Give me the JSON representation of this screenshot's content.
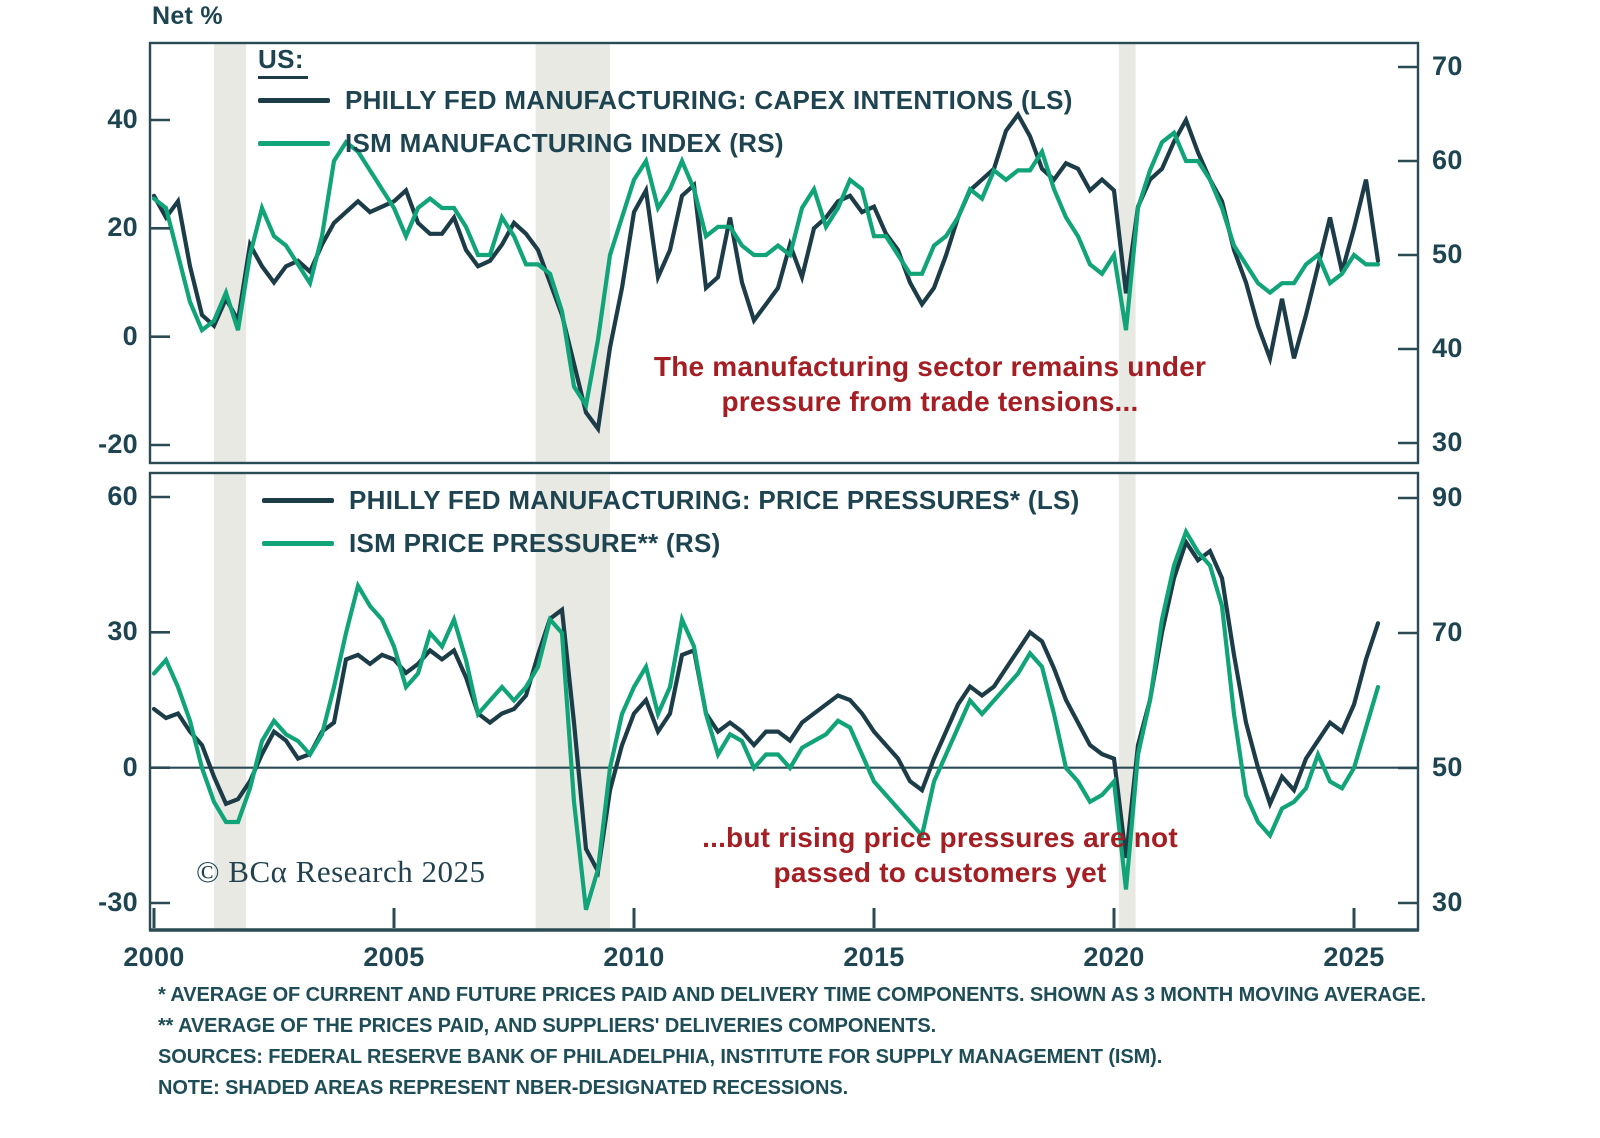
{
  "header": {
    "axis_title": "Net %"
  },
  "watermark": "© BCα Research 2025",
  "colors": {
    "dark_line": "#1c3c48",
    "green_line": "#10a478",
    "annotation_red": "#a41e23",
    "recession_band": "#e9e9e4",
    "axis": "#2a4a54",
    "text": "#1d4450",
    "footnote_text": "#1e4d57"
  },
  "annotations": {
    "top": {
      "line1": "The manufacturing sector remains under",
      "line2": "pressure from trade tensions..."
    },
    "bottom": {
      "line1": "...but rising price pressures are not",
      "line2": "passed to customers yet"
    }
  },
  "footnotes": [
    "* AVERAGE OF CURRENT AND FUTURE PRICES PAID AND DELIVERY TIME COMPONENTS. SHOWN AS 3 MONTH MOVING AVERAGE.",
    "** AVERAGE OF THE PRICES PAID, AND SUPPLIERS' DELIVERIES COMPONENTS.",
    "SOURCES: FEDERAL RESERVE BANK OF PHILADELPHIA, INSTITUTE FOR SUPPLY MANAGEMENT (ISM).",
    "NOTE: SHADED AREAS REPRESENT NBER-DESIGNATED RECESSIONS."
  ],
  "chart_data": {
    "type": "line",
    "x_axis": {
      "start": 2000,
      "step_years": 0.25,
      "tick_years": [
        2000,
        2005,
        2010,
        2015,
        2020,
        2025
      ],
      "tick_labels": [
        "2000",
        "2005",
        "2010",
        "2015",
        "2020",
        "2025"
      ],
      "range": [
        2000,
        2026.4
      ]
    },
    "recession_bands_years": [
      [
        2001.25,
        2001.92
      ],
      [
        2007.95,
        2009.5
      ],
      [
        2020.1,
        2020.45
      ]
    ],
    "panels": [
      {
        "region_label": "US:",
        "zero_line": false,
        "left_axis": {
          "ticks": [
            {
              "label": "40",
              "value": 40
            },
            {
              "label": "20",
              "value": 20
            },
            {
              "label": "0",
              "value": 0
            },
            {
              "label": "-20",
              "value": -20
            }
          ],
          "range": [
            -23,
            54
          ]
        },
        "right_axis": {
          "ticks": [
            {
              "label": "70",
              "value": 70
            },
            {
              "label": "60",
              "value": 60
            },
            {
              "label": "50",
              "value": 50
            },
            {
              "label": "40",
              "value": 40
            },
            {
              "label": "30",
              "value": 30
            }
          ],
          "range": [
            27.5,
            72.5
          ]
        },
        "series": [
          {
            "name": "PHILLY FED MANUFACTURING: CAPEX INTENTIONS (LS)",
            "axis": "left",
            "color_key": "dark_line",
            "values": [
              26,
              22,
              25,
              13,
              4,
              2,
              7,
              3,
              17,
              13,
              10,
              13,
              14,
              12,
              17,
              21,
              23,
              25,
              23,
              24,
              25,
              27,
              21,
              19,
              19,
              22,
              16,
              13,
              14,
              17,
              21,
              19,
              16,
              10,
              4,
              -5,
              -14,
              -17,
              -2,
              9,
              23,
              27,
              11,
              16,
              26,
              28,
              9,
              11,
              22,
              10,
              3,
              6,
              9,
              17,
              11,
              20,
              22,
              25,
              26,
              23,
              24,
              19,
              16,
              10,
              6,
              9,
              15,
              22,
              27,
              29,
              31,
              38,
              41,
              37,
              31,
              29,
              32,
              31,
              27,
              29,
              27,
              8,
              24,
              29,
              31,
              36,
              40,
              34,
              29,
              25,
              16,
              10,
              2,
              -4,
              7,
              -4,
              4,
              13,
              22,
              12,
              20,
              29,
              14
            ]
          },
          {
            "name": "ISM MANUFACTURING INDEX (RS)",
            "axis": "right",
            "color_key": "green_line",
            "values": [
              56,
              55,
              50,
              45,
              42,
              43,
              46,
              42,
              50,
              55,
              52,
              51,
              49,
              47,
              52,
              60,
              62,
              61,
              59,
              57,
              55,
              52,
              55,
              56,
              55,
              55,
              53,
              50,
              50,
              54,
              52,
              49,
              49,
              48,
              44,
              36,
              34,
              41,
              50,
              54,
              58,
              60,
              55,
              57,
              60,
              57,
              52,
              53,
              53,
              51,
              50,
              50,
              51,
              50,
              55,
              57,
              53,
              55,
              58,
              57,
              52,
              52,
              50,
              48,
              48,
              51,
              52,
              54,
              57,
              56,
              59,
              58,
              59,
              59,
              61,
              57,
              54,
              52,
              49,
              48,
              50,
              42,
              55,
              59,
              62,
              63,
              60,
              60,
              58,
              55,
              51,
              49,
              47,
              46,
              47,
              47,
              49,
              50,
              47,
              48,
              50,
              49,
              49
            ]
          }
        ]
      },
      {
        "region_label": "",
        "zero_line": true,
        "left_axis": {
          "ticks": [
            {
              "label": "60",
              "value": 60
            },
            {
              "label": "30",
              "value": 30
            },
            {
              "label": "0",
              "value": 0
            },
            {
              "label": "-30",
              "value": -30
            }
          ],
          "range": [
            -36,
            61
          ]
        },
        "right_axis": {
          "ticks": [
            {
              "label": "90",
              "value": 90
            },
            {
              "label": "70",
              "value": 70
            },
            {
              "label": "50",
              "value": 50
            },
            {
              "label": "30",
              "value": 30
            }
          ],
          "range": [
            26,
            93.7
          ]
        },
        "series": [
          {
            "name": "PHILLY FED MANUFACTURING: PRICE PRESSURES* (LS)",
            "axis": "left",
            "color_key": "dark_line",
            "values": [
              13,
              11,
              12,
              8,
              5,
              -2,
              -8,
              -7,
              -3,
              3,
              8,
              6,
              2,
              3,
              8,
              10,
              24,
              25,
              23,
              25,
              24,
              21,
              23,
              26,
              24,
              26,
              20,
              12,
              10,
              12,
              13,
              16,
              25,
              33,
              35,
              10,
              -18,
              -23,
              -5,
              5,
              12,
              15,
              8,
              12,
              25,
              26,
              12,
              8,
              10,
              8,
              5,
              8,
              8,
              6,
              10,
              12,
              14,
              16,
              15,
              12,
              8,
              5,
              2,
              -3,
              -5,
              2,
              8,
              14,
              18,
              16,
              18,
              22,
              26,
              30,
              28,
              22,
              15,
              10,
              5,
              3,
              2,
              -20,
              5,
              15,
              30,
              42,
              50,
              46,
              48,
              42,
              25,
              10,
              0,
              -8,
              -2,
              -5,
              2,
              6,
              10,
              8,
              14,
              24,
              32
            ]
          },
          {
            "name": "ISM PRICE PRESSURE** (RS)",
            "axis": "right",
            "color_key": "green_line",
            "values": [
              64,
              66,
              62,
              57,
              50,
              45,
              42,
              42,
              47,
              54,
              57,
              55,
              54,
              52,
              55,
              62,
              70,
              77,
              74,
              72,
              68,
              62,
              64,
              70,
              68,
              72,
              66,
              58,
              60,
              62,
              60,
              62,
              65,
              72,
              70,
              45,
              29,
              35,
              50,
              58,
              62,
              65,
              58,
              62,
              72,
              68,
              58,
              52,
              55,
              54,
              50,
              52,
              52,
              50,
              53,
              54,
              55,
              57,
              56,
              52,
              48,
              46,
              44,
              42,
              40,
              48,
              52,
              56,
              60,
              58,
              60,
              62,
              64,
              67,
              65,
              58,
              50,
              48,
              45,
              46,
              48,
              32,
              52,
              60,
              72,
              80,
              85,
              82,
              80,
              74,
              58,
              46,
              42,
              40,
              44,
              45,
              47,
              52,
              48,
              47,
              50,
              56,
              62
            ]
          }
        ]
      }
    ]
  }
}
